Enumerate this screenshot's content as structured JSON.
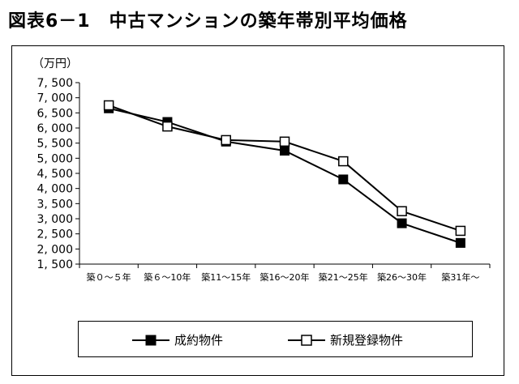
{
  "page": {
    "title": "図表6－1　中古マンションの築年帯別平均価格"
  },
  "chart_data": {
    "type": "line",
    "title": "",
    "ylabel": "（万円）",
    "xlabel": "",
    "ylim": [
      1500,
      7500
    ],
    "yticks": [
      1500,
      2000,
      2500,
      3000,
      3500,
      4000,
      4500,
      5000,
      5500,
      6000,
      6500,
      7000,
      7500
    ],
    "ytick_labels": [
      "1, 500",
      "2, 000",
      "2, 500",
      "3, 000",
      "3, 500",
      "4, 000",
      "4, 500",
      "5, 000",
      "5, 500",
      "6, 000",
      "6, 500",
      "7, 000",
      "7, 500"
    ],
    "categories": [
      "築０～５年",
      "築６～10年",
      "築11～15年",
      "築16～20年",
      "築21～25年",
      "築26～30年",
      "築31年～"
    ],
    "series": [
      {
        "name": "成約物件",
        "marker": "filled-square",
        "color": "#000000",
        "values": [
          6650,
          6200,
          5550,
          5250,
          4300,
          2850,
          2200
        ]
      },
      {
        "name": "新規登録物件",
        "marker": "open-square",
        "color": "#000000",
        "values": [
          6750,
          6050,
          5600,
          5550,
          4900,
          3250,
          2600
        ]
      }
    ],
    "grid": false,
    "legend_position": "bottom"
  }
}
